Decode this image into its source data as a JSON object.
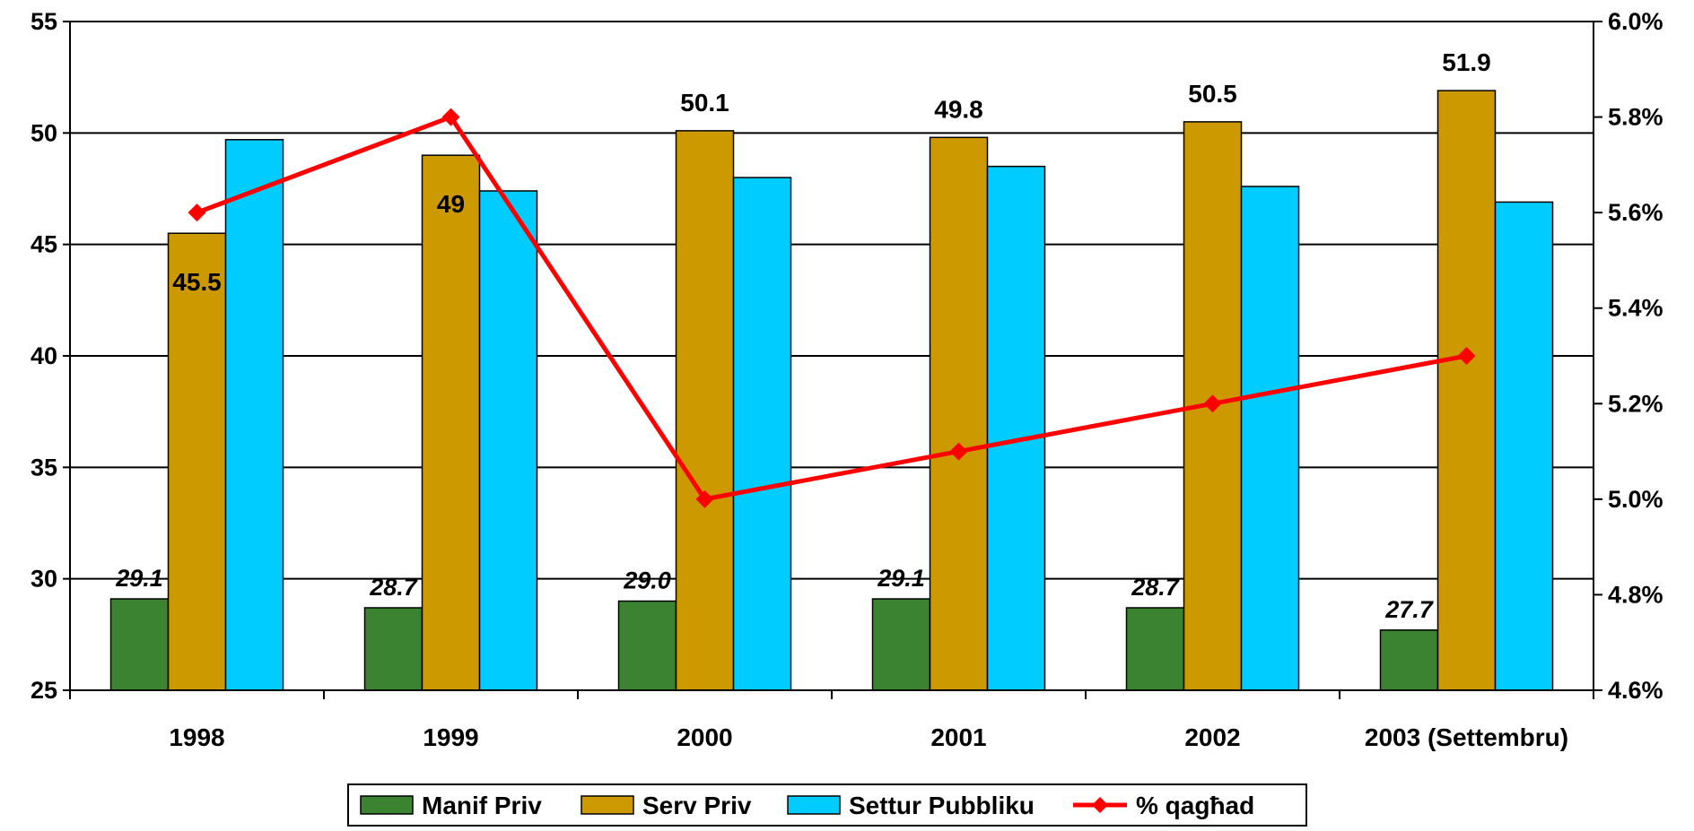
{
  "chart_data": {
    "type": "bar",
    "categories": [
      "1998",
      "1999",
      "2000",
      "2001",
      "2002",
      "2003 (Settembru)"
    ],
    "series": [
      {
        "name": "Manif Priv",
        "values": [
          29.1,
          28.7,
          29.0,
          29.1,
          28.7,
          27.7
        ],
        "color": "#3b8231",
        "labels": [
          "29.1",
          "28.7",
          "29.0",
          "29.1",
          "28.7",
          "27.7"
        ]
      },
      {
        "name": "Serv Priv",
        "values": [
          45.5,
          49.0,
          50.1,
          49.8,
          50.5,
          51.9
        ],
        "color": "#cc9900",
        "labels": [
          "45.5",
          "49",
          "50.1",
          "49.8",
          "50.5",
          "51.9"
        ]
      },
      {
        "name": "Settur Pubbliku",
        "values": [
          49.7,
          47.4,
          48.0,
          48.5,
          47.6,
          46.9
        ],
        "color": "#00ccff"
      }
    ],
    "line_series": {
      "name": "% qagħad",
      "values": [
        5.6,
        5.8,
        5.0,
        5.1,
        5.2,
        5.3
      ],
      "color": "#ff0000",
      "axis": "right"
    },
    "y_left": {
      "min": 25,
      "max": 55,
      "ticks": [
        "25",
        "30",
        "35",
        "40",
        "45",
        "50",
        "55"
      ]
    },
    "y_right": {
      "min": 4.6,
      "max": 6.0,
      "ticks": [
        "4.6%",
        "4.8%",
        "5.0%",
        "5.2%",
        "5.4%",
        "5.6%",
        "5.8%",
        "6.0%"
      ]
    },
    "grid": true,
    "legend_position": "bottom",
    "title": "",
    "xlabel": "",
    "ylabel": ""
  }
}
